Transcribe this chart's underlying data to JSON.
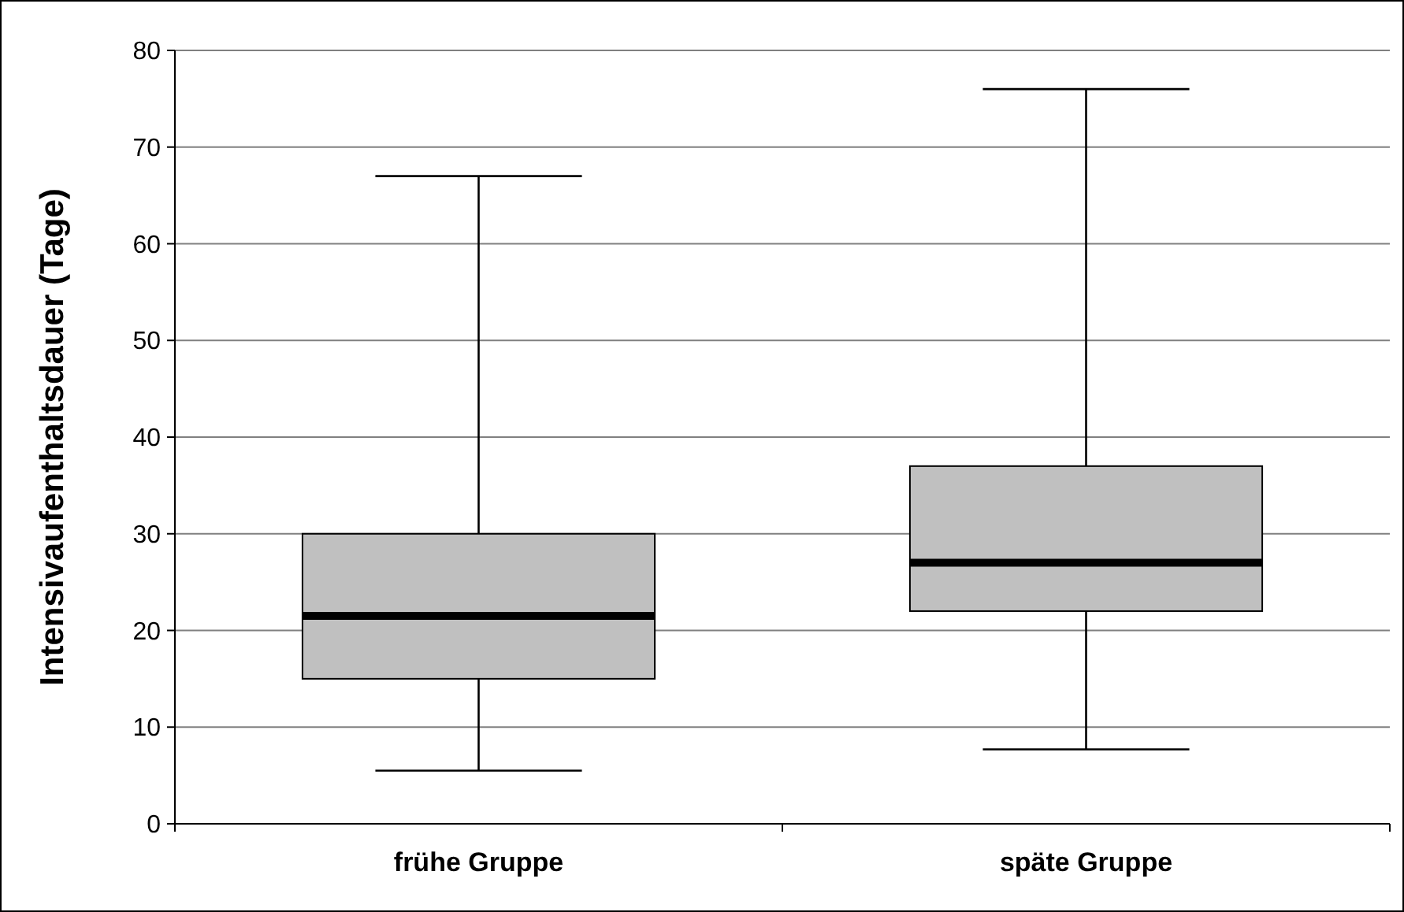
{
  "chart_data": {
    "type": "box",
    "ylabel": "Intensivaufenthaltsdauer (Tage)",
    "categories": [
      "frühe Gruppe",
      "späte Gruppe"
    ],
    "color": "#c0c0c0",
    "grid": "y",
    "ylim": [
      0,
      80
    ],
    "yticks": [
      0,
      10,
      20,
      30,
      40,
      50,
      60,
      70,
      80
    ],
    "boxes": [
      {
        "low": 5.5,
        "q1": 15,
        "median": 21.5,
        "q3": 30,
        "high": 67
      },
      {
        "low": 7.7,
        "q1": 22,
        "median": 27,
        "q3": 37,
        "high": 76
      }
    ]
  }
}
